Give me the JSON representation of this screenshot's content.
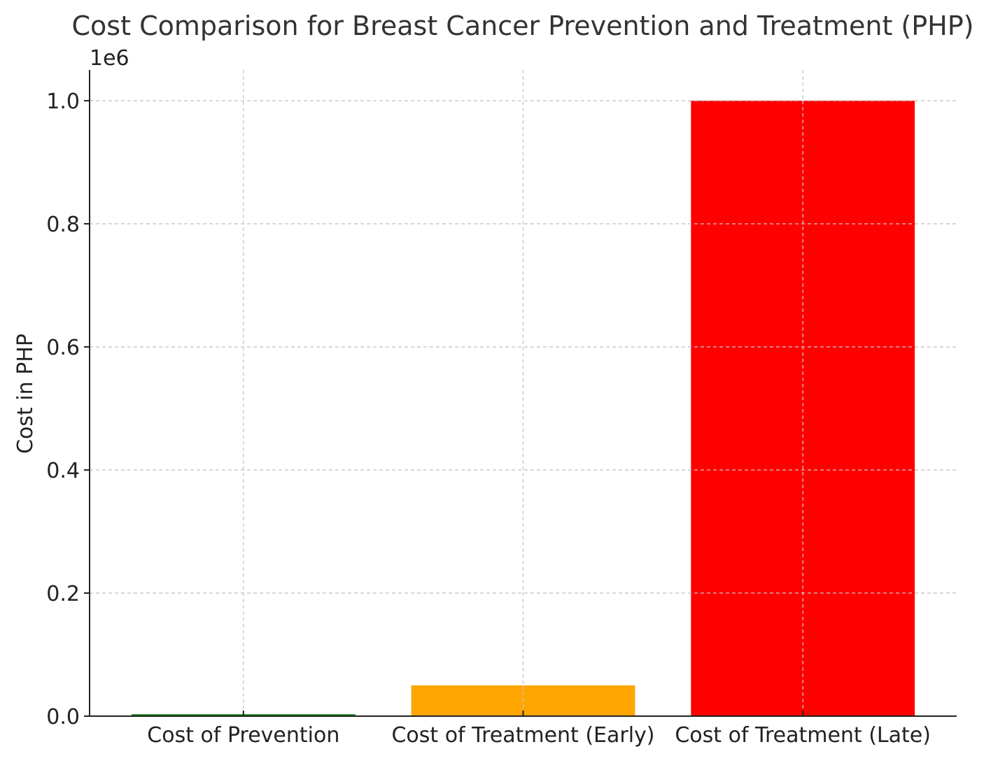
{
  "chart_data": {
    "type": "bar",
    "title": "Cost Comparison for Breast Cancer Prevention and Treatment (PHP)",
    "xlabel": "",
    "ylabel": "Cost in PHP",
    "y_multiplier_label": "1e6",
    "categories": [
      "Cost of Prevention",
      "Cost of Treatment (Early)",
      "Cost of Treatment (Late)"
    ],
    "values": [
      3000,
      50000,
      1000000
    ],
    "colors": [
      "#008000",
      "#FFA500",
      "#FF0000"
    ],
    "ylim": [
      0,
      1050000
    ],
    "yticks": [
      0,
      200000,
      400000,
      600000,
      800000,
      1000000
    ],
    "ytick_labels": [
      "0.0",
      "0.2",
      "0.4",
      "0.6",
      "0.8",
      "1.0"
    ],
    "grid": true,
    "legend": "none"
  }
}
